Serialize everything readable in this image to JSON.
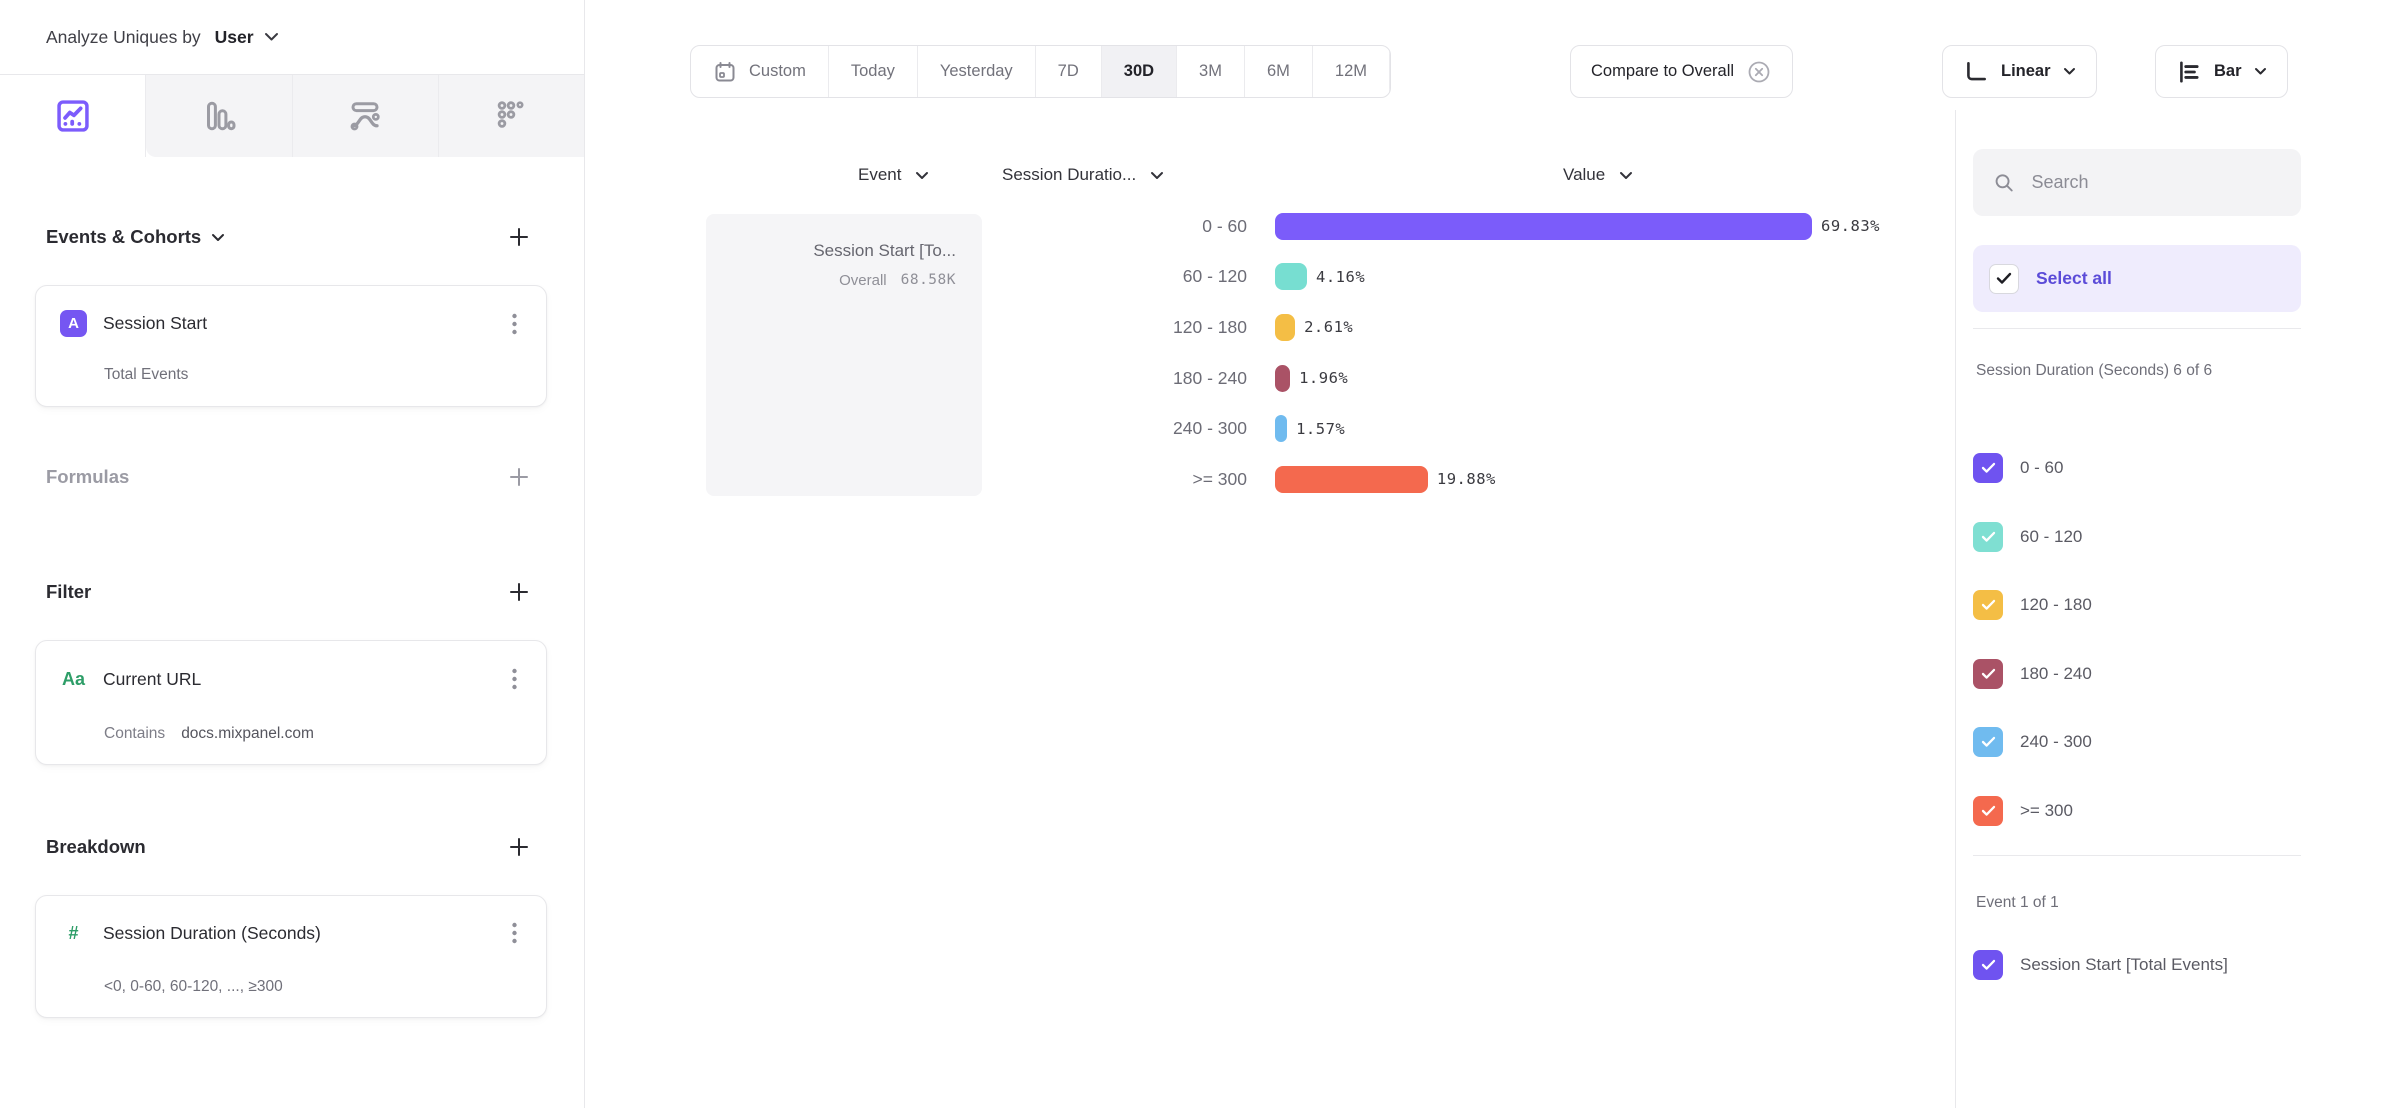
{
  "header": {
    "analyze_label": "Analyze Uniques by",
    "analyze_value": "User"
  },
  "sidebar": {
    "events_title": "Events & Cohorts",
    "event_card": {
      "badge": "A",
      "title": "Session Start",
      "subtitle": "Total Events"
    },
    "formulas_title": "Formulas",
    "filter_title": "Filter",
    "filter_card": {
      "badge": "Aa",
      "title": "Current URL",
      "operator": "Contains",
      "value": "docs.mixpanel.com"
    },
    "breakdown_title": "Breakdown",
    "breakdown_card": {
      "badge": "#",
      "title": "Session Duration (Seconds)",
      "subtitle": "<0, 0-60, 60-120, ..., ≥300"
    }
  },
  "toolbar": {
    "date_tabs": [
      {
        "label": "Custom",
        "icon": "calendar"
      },
      {
        "label": "Today"
      },
      {
        "label": "Yesterday"
      },
      {
        "label": "7D"
      },
      {
        "label": "30D",
        "active": true
      },
      {
        "label": "3M"
      },
      {
        "label": "6M"
      },
      {
        "label": "12M"
      }
    ],
    "compare_label": "Compare to Overall",
    "linear_label": "Linear",
    "bar_label": "Bar"
  },
  "chart": {
    "columns": {
      "event": "Event",
      "breakdown": "Session Duratio...",
      "value": "Value"
    },
    "event_cell": {
      "title": "Session Start [To...",
      "overall_label": "Overall",
      "overall_value": "68.58K"
    },
    "rows": [
      {
        "label": "0 - 60",
        "value": 69.83,
        "value_label": "69.83%",
        "color": "#7B5CFA"
      },
      {
        "label": "60 - 120",
        "value": 4.16,
        "value_label": "4.16%",
        "color": "#77DED1"
      },
      {
        "label": "120 - 180",
        "value": 2.61,
        "value_label": "2.61%",
        "color": "#F4BE45"
      },
      {
        "label": "180 - 240",
        "value": 1.96,
        "value_label": "1.96%",
        "color": "#AA5266"
      },
      {
        "label": "240 - 300",
        "value": 1.57,
        "value_label": "1.57%",
        "color": "#70BBEF"
      },
      {
        "label": ">= 300",
        "value": 19.88,
        "value_label": "19.88%",
        "color": "#F4694E"
      }
    ]
  },
  "panel": {
    "search_placeholder": "Search",
    "select_all_label": "Select all",
    "group1_label": "Session Duration (Seconds) 6 of 6",
    "group1_items": [
      {
        "label": "0 - 60",
        "color": "#6F53F0"
      },
      {
        "label": "60 - 120",
        "color": "#7FDFD2"
      },
      {
        "label": "120 - 180",
        "color": "#F4BE45"
      },
      {
        "label": "180 - 240",
        "color": "#AA5266"
      },
      {
        "label": "240 - 300",
        "color": "#70BBEF"
      },
      {
        "label": ">= 300",
        "color": "#F4694E"
      }
    ],
    "group2_label": "Event 1 of 1",
    "group2_item": {
      "label": "Session Start [Total Events]",
      "color": "#6F53F0"
    }
  },
  "chart_data": {
    "type": "bar",
    "orientation": "horizontal",
    "title": "Session Start [Total Events] by Session Duration (Seconds)",
    "categories": [
      "0 - 60",
      "60 - 120",
      "120 - 180",
      "180 - 240",
      "240 - 300",
      ">= 300"
    ],
    "values": [
      69.83,
      4.16,
      2.61,
      1.96,
      1.57,
      19.88
    ],
    "unit": "%",
    "series_name": "Session Start [Total Events]",
    "overall_value": "68.58K",
    "colors": [
      "#7B5CFA",
      "#77DED1",
      "#F4BE45",
      "#AA5266",
      "#70BBEF",
      "#F4694E"
    ],
    "xlim": [
      0,
      100
    ],
    "grid": false,
    "legend_position": "right-panel-checkboxes"
  }
}
